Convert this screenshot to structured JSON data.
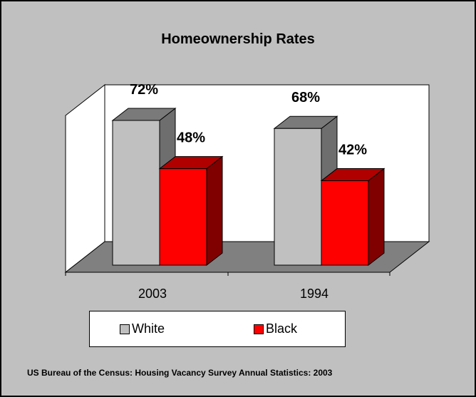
{
  "chart_data": {
    "type": "bar",
    "title": "Homeownership Rates",
    "categories": [
      "2003",
      "1994"
    ],
    "series": [
      {
        "name": "White",
        "values": [
          72,
          68
        ],
        "labels": [
          "72%",
          "68%"
        ],
        "color": "#c0c0c0"
      },
      {
        "name": "Black",
        "values": [
          48,
          42
        ],
        "labels": [
          "48%",
          "42%"
        ],
        "color": "#ff0000"
      }
    ],
    "ylim": [
      0,
      100
    ],
    "legend_position": "bottom",
    "three_d": true
  },
  "legend": {
    "white_label": "White",
    "black_label": "Black"
  },
  "source": "US Bureau of the Census:  Housing Vacancy Survey Annual Statistics: 2003"
}
